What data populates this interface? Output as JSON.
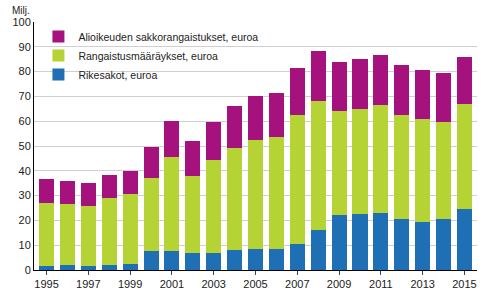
{
  "chart_data": {
    "type": "bar",
    "stacked": true,
    "ylabel": "Milj.",
    "categories": [
      "1995",
      null,
      "1997",
      null,
      "1999",
      null,
      "2001",
      null,
      "2003",
      null,
      "2005",
      null,
      "2007",
      null,
      "2009",
      null,
      "2011",
      null,
      "2013",
      null,
      "2015"
    ],
    "series": [
      {
        "name": "Rikesakot, euroa",
        "color": "#1f6fb5",
        "values": [
          1.5,
          2,
          1.5,
          2,
          2.5,
          7.5,
          7.5,
          7,
          7,
          8,
          8.5,
          8.5,
          10.5,
          16,
          22,
          22.5,
          23,
          20.5,
          19.5,
          20.5,
          24.5
        ]
      },
      {
        "name": "Rangaistusmääräykset, euroa",
        "color": "#b5d334",
        "values": [
          25.5,
          24.5,
          24.5,
          27,
          28,
          29.5,
          38,
          31,
          37.5,
          41,
          44,
          45,
          52,
          52,
          42,
          42.5,
          43.5,
          42,
          41.5,
          39,
          42.5
        ]
      },
      {
        "name": "Alioikeuden sakkorangaistukset, euroa",
        "color": "#a6127d",
        "values": [
          9.5,
          9.5,
          9,
          9.5,
          9.5,
          12.5,
          14.5,
          14,
          15,
          17,
          17.5,
          18,
          19,
          20.5,
          20,
          20,
          20,
          20,
          19.5,
          20,
          19
        ]
      }
    ],
    "ylim": [
      0,
      100
    ],
    "yticks": [
      0,
      10,
      20,
      30,
      40,
      50,
      60,
      70,
      80,
      90,
      100
    ],
    "grid": true,
    "legend": "top-left"
  }
}
